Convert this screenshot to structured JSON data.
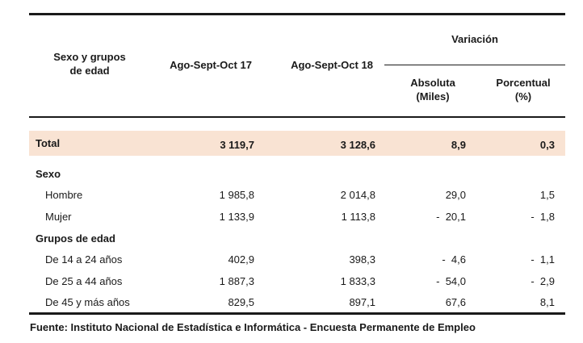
{
  "table": {
    "header": {
      "col_group": "Sexo y grupos\nde edad",
      "col_period1": "Ago-Sept-Oct 17",
      "col_period2": "Ago-Sept-Oct 18",
      "col_variation": "Variación",
      "col_abs": "Absoluta\n(Miles)",
      "col_pct": "Porcentual\n(%)"
    },
    "total": {
      "label": "Total",
      "p1": "3 119,7",
      "p2": "3 128,6",
      "abs": "8,9",
      "pct": "0,3"
    },
    "sections": [
      {
        "title": "Sexo",
        "rows": [
          {
            "label": "Hombre",
            "p1": "1 985,8",
            "p2": "2 014,8",
            "abs": "29,0",
            "pct": "1,5"
          },
          {
            "label": "Mujer",
            "p1": "1 133,9",
            "p2": "1 113,8",
            "abs": "-  20,1",
            "pct": "-  1,8"
          }
        ]
      },
      {
        "title": "Grupos de edad",
        "rows": [
          {
            "label": "De 14 a 24 años",
            "p1": "402,9",
            "p2": "398,3",
            "abs": "-  4,6",
            "pct": "-  1,1"
          },
          {
            "label": "De 25 a 44 años",
            "p1": "1 887,3",
            "p2": "1 833,3",
            "abs": "-  54,0",
            "pct": "-  2,9"
          },
          {
            "label": "De 45 y más años",
            "p1": "829,5",
            "p2": "897,1",
            "abs": "67,6",
            "pct": "8,1"
          }
        ]
      }
    ]
  },
  "source": "Fuente: Instituto Nacional de Estadística e Informática  - Encuesta Permanente de Empleo"
}
